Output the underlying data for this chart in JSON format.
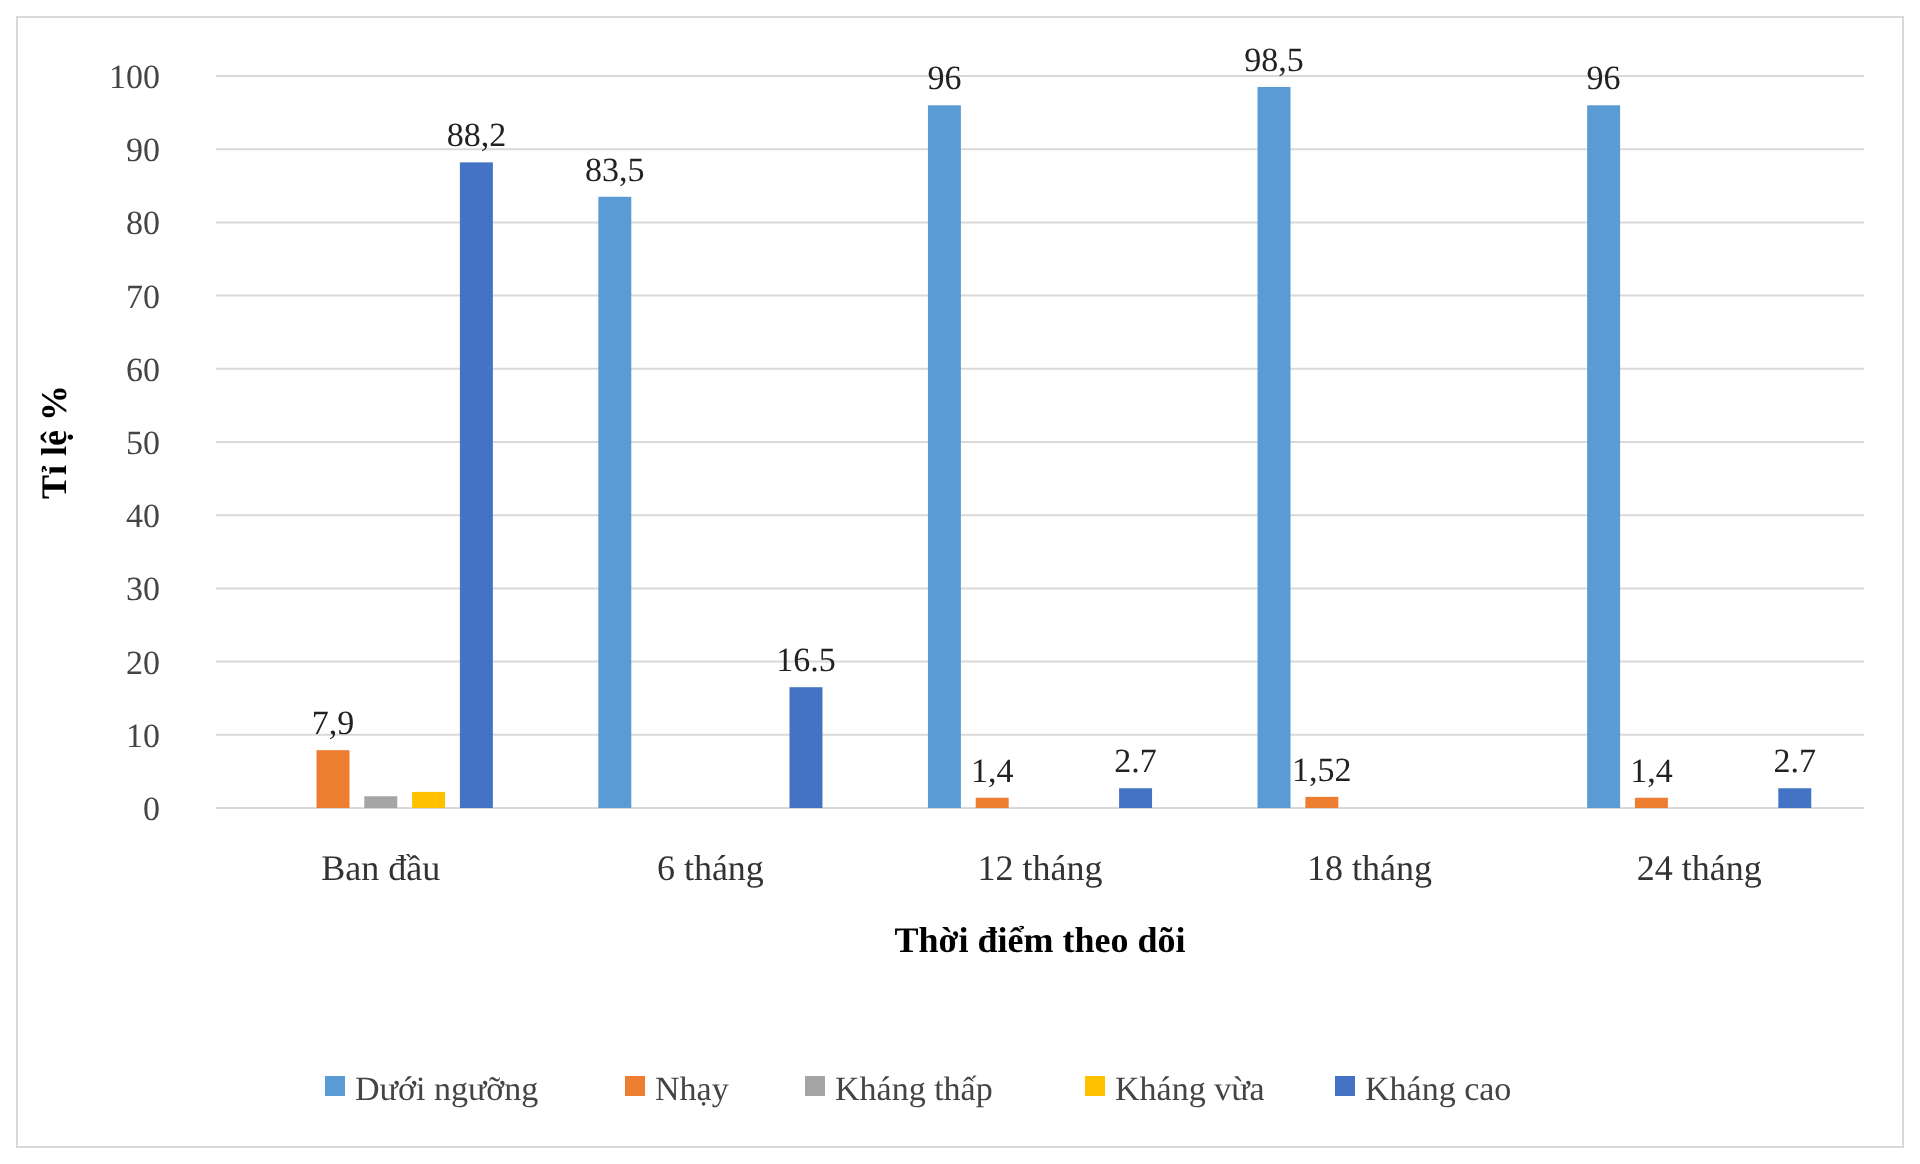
{
  "chart_data": {
    "type": "bar",
    "xlabel": "Thời điểm theo dõi",
    "ylabel": "Tỉ lệ %",
    "categories": [
      "Ban đầu",
      "6 tháng",
      "12 tháng",
      "18 tháng",
      "24 tháng"
    ],
    "ylim": [
      0,
      100
    ],
    "yticks": [
      0,
      10,
      20,
      30,
      40,
      50,
      60,
      70,
      80,
      90,
      100
    ],
    "grid": "y",
    "legend": "bottom",
    "series": [
      {
        "name": "Dưới ngưỡng",
        "color": "#5b9bd5",
        "values": [
          null,
          83.5,
          96,
          98.5,
          96
        ],
        "value_labels": [
          null,
          "83,5",
          "96",
          "98,5",
          "96"
        ]
      },
      {
        "name": "Nhạy",
        "color": "#ed7d31",
        "values": [
          7.9,
          null,
          1.4,
          1.52,
          1.4
        ],
        "value_labels": [
          "7,9",
          null,
          "1,4",
          "1,52",
          "1,4"
        ]
      },
      {
        "name": "Kháng thấp",
        "color": "#a5a5a5",
        "values": [
          1.6,
          null,
          null,
          null,
          null
        ]
      },
      {
        "name": "Kháng vừa",
        "color": "#ffc000",
        "values": [
          2.2,
          null,
          null,
          null,
          null
        ]
      },
      {
        "name": "Kháng cao",
        "color": "#4472c4",
        "values": [
          88.2,
          16.5,
          2.7,
          null,
          2.7
        ],
        "value_labels": [
          "88,2",
          "16.5",
          "2.7",
          null,
          "2.7"
        ]
      }
    ]
  }
}
